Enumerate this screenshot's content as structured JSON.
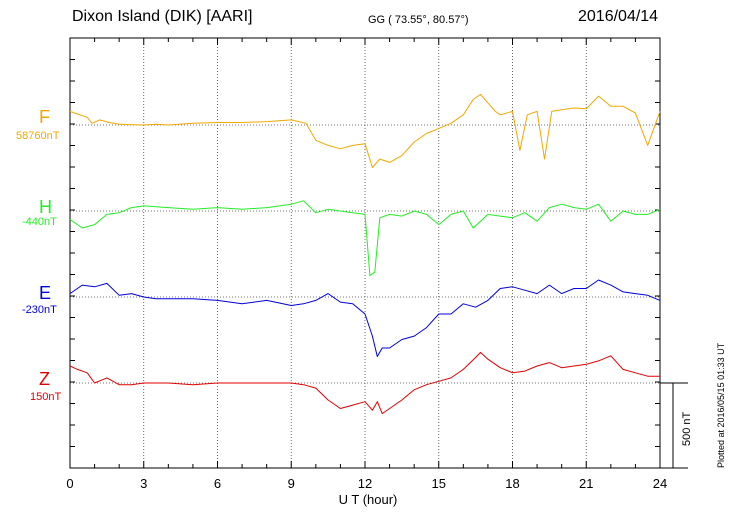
{
  "header": {
    "station": "Dixon Island (DIK)  [AARI]",
    "geo": "GG ( 73.55°,  80.57°)",
    "date": "2016/04/14"
  },
  "plotted_note": "Plotted at 2016/05/15 01:33 UT",
  "scale_label": "500 nT",
  "colors": {
    "F": "#f0a800",
    "H": "#22ee22",
    "E": "#0000dd",
    "Z": "#e00000"
  },
  "chart_data": {
    "type": "line",
    "xlabel": "U T (hour)",
    "xlim": [
      0,
      24
    ],
    "xticks": [
      "0",
      "3",
      "6",
      "9",
      "12",
      "15",
      "18",
      "21",
      "24"
    ],
    "series": [
      {
        "name": "F",
        "baseline": "58760nT",
        "x": [
          0,
          0.3,
          0.7,
          0.9,
          1.2,
          1.6,
          2,
          3,
          3.5,
          4,
          5,
          6,
          7,
          8,
          9,
          9.6,
          10,
          10.5,
          11,
          11.5,
          12,
          12.3,
          12.6,
          13,
          13.5,
          14,
          14.5,
          15,
          15.5,
          16,
          16.4,
          16.7,
          17,
          17.3,
          17.5,
          18,
          18.3,
          18.6,
          19,
          19.3,
          19.6,
          20,
          20.5,
          21,
          21.5,
          22,
          22.5,
          23,
          23.5,
          24
        ],
        "y": [
          80,
          65,
          45,
          10,
          30,
          15,
          5,
          0,
          5,
          0,
          10,
          15,
          15,
          20,
          30,
          10,
          -90,
          -120,
          -140,
          -120,
          -110,
          -250,
          -200,
          -220,
          -180,
          -100,
          -50,
          -20,
          10,
          60,
          150,
          180,
          130,
          80,
          60,
          80,
          -150,
          60,
          80,
          -200,
          80,
          90,
          100,
          95,
          170,
          110,
          110,
          70,
          -120,
          80
        ]
      },
      {
        "name": "H",
        "baseline": "-440nT",
        "x": [
          0,
          0.5,
          1,
          1.5,
          2,
          2.5,
          3,
          4,
          5,
          6,
          7,
          8,
          9,
          9.5,
          10,
          10.5,
          11,
          11.5,
          12,
          12.2,
          12.4,
          12.6,
          13,
          13.5,
          14,
          14.5,
          15,
          15.5,
          16,
          16.4,
          16.7,
          17,
          17.5,
          18,
          18.5,
          19,
          19.5,
          20,
          20.5,
          21,
          21.5,
          22,
          22.5,
          23,
          23.5,
          24
        ],
        "y": [
          -50,
          -100,
          -80,
          -20,
          -10,
          20,
          30,
          20,
          10,
          20,
          10,
          20,
          40,
          60,
          -10,
          10,
          0,
          -10,
          -20,
          -380,
          -360,
          -40,
          -20,
          -30,
          0,
          -20,
          -80,
          -20,
          0,
          -100,
          -60,
          -20,
          -30,
          -40,
          -10,
          -60,
          20,
          40,
          20,
          10,
          40,
          -60,
          0,
          -20,
          -20,
          10
        ]
      },
      {
        "name": "E",
        "baseline": "-230nT",
        "x": [
          0,
          0.5,
          1,
          1.5,
          2,
          2.5,
          3,
          3.5,
          4,
          5,
          6,
          7,
          8,
          9,
          9.5,
          10,
          10.5,
          11,
          11.5,
          12,
          12.3,
          12.5,
          12.7,
          13,
          13.5,
          14,
          14.5,
          15,
          15.5,
          16,
          16.5,
          17,
          17.5,
          18,
          18.5,
          19,
          19.5,
          20,
          20.5,
          21,
          21.5,
          22,
          22.5,
          23,
          23.5,
          24
        ],
        "y": [
          20,
          70,
          60,
          80,
          10,
          20,
          0,
          -10,
          -10,
          -10,
          -20,
          -40,
          -20,
          -50,
          -40,
          -20,
          20,
          -30,
          -40,
          -100,
          -230,
          -350,
          -300,
          -300,
          -250,
          -230,
          -180,
          -100,
          -100,
          -40,
          -60,
          -20,
          50,
          60,
          40,
          20,
          70,
          20,
          50,
          50,
          100,
          70,
          30,
          20,
          10,
          -20
        ]
      },
      {
        "name": "Z",
        "baseline": "150nT",
        "x": [
          0,
          0.3,
          0.7,
          1,
          1.5,
          2,
          2.5,
          3,
          4,
          5,
          6,
          7,
          8,
          9,
          9.5,
          10,
          10.5,
          11,
          11.5,
          12,
          12.3,
          12.5,
          12.7,
          13,
          13.5,
          14,
          14.5,
          15,
          15.5,
          16,
          16.5,
          16.7,
          17,
          17.5,
          18,
          18.5,
          19,
          19.5,
          20,
          20.5,
          21,
          21.5,
          22,
          22.5,
          23,
          23.5,
          24
        ],
        "y": [
          100,
          80,
          60,
          0,
          30,
          -10,
          -10,
          0,
          0,
          -10,
          0,
          0,
          0,
          0,
          -10,
          -30,
          -100,
          -150,
          -130,
          -110,
          -160,
          -110,
          -180,
          -150,
          -100,
          -40,
          -10,
          10,
          30,
          80,
          150,
          180,
          140,
          90,
          60,
          70,
          100,
          120,
          90,
          100,
          110,
          130,
          160,
          80,
          60,
          40,
          40
        ]
      }
    ]
  }
}
